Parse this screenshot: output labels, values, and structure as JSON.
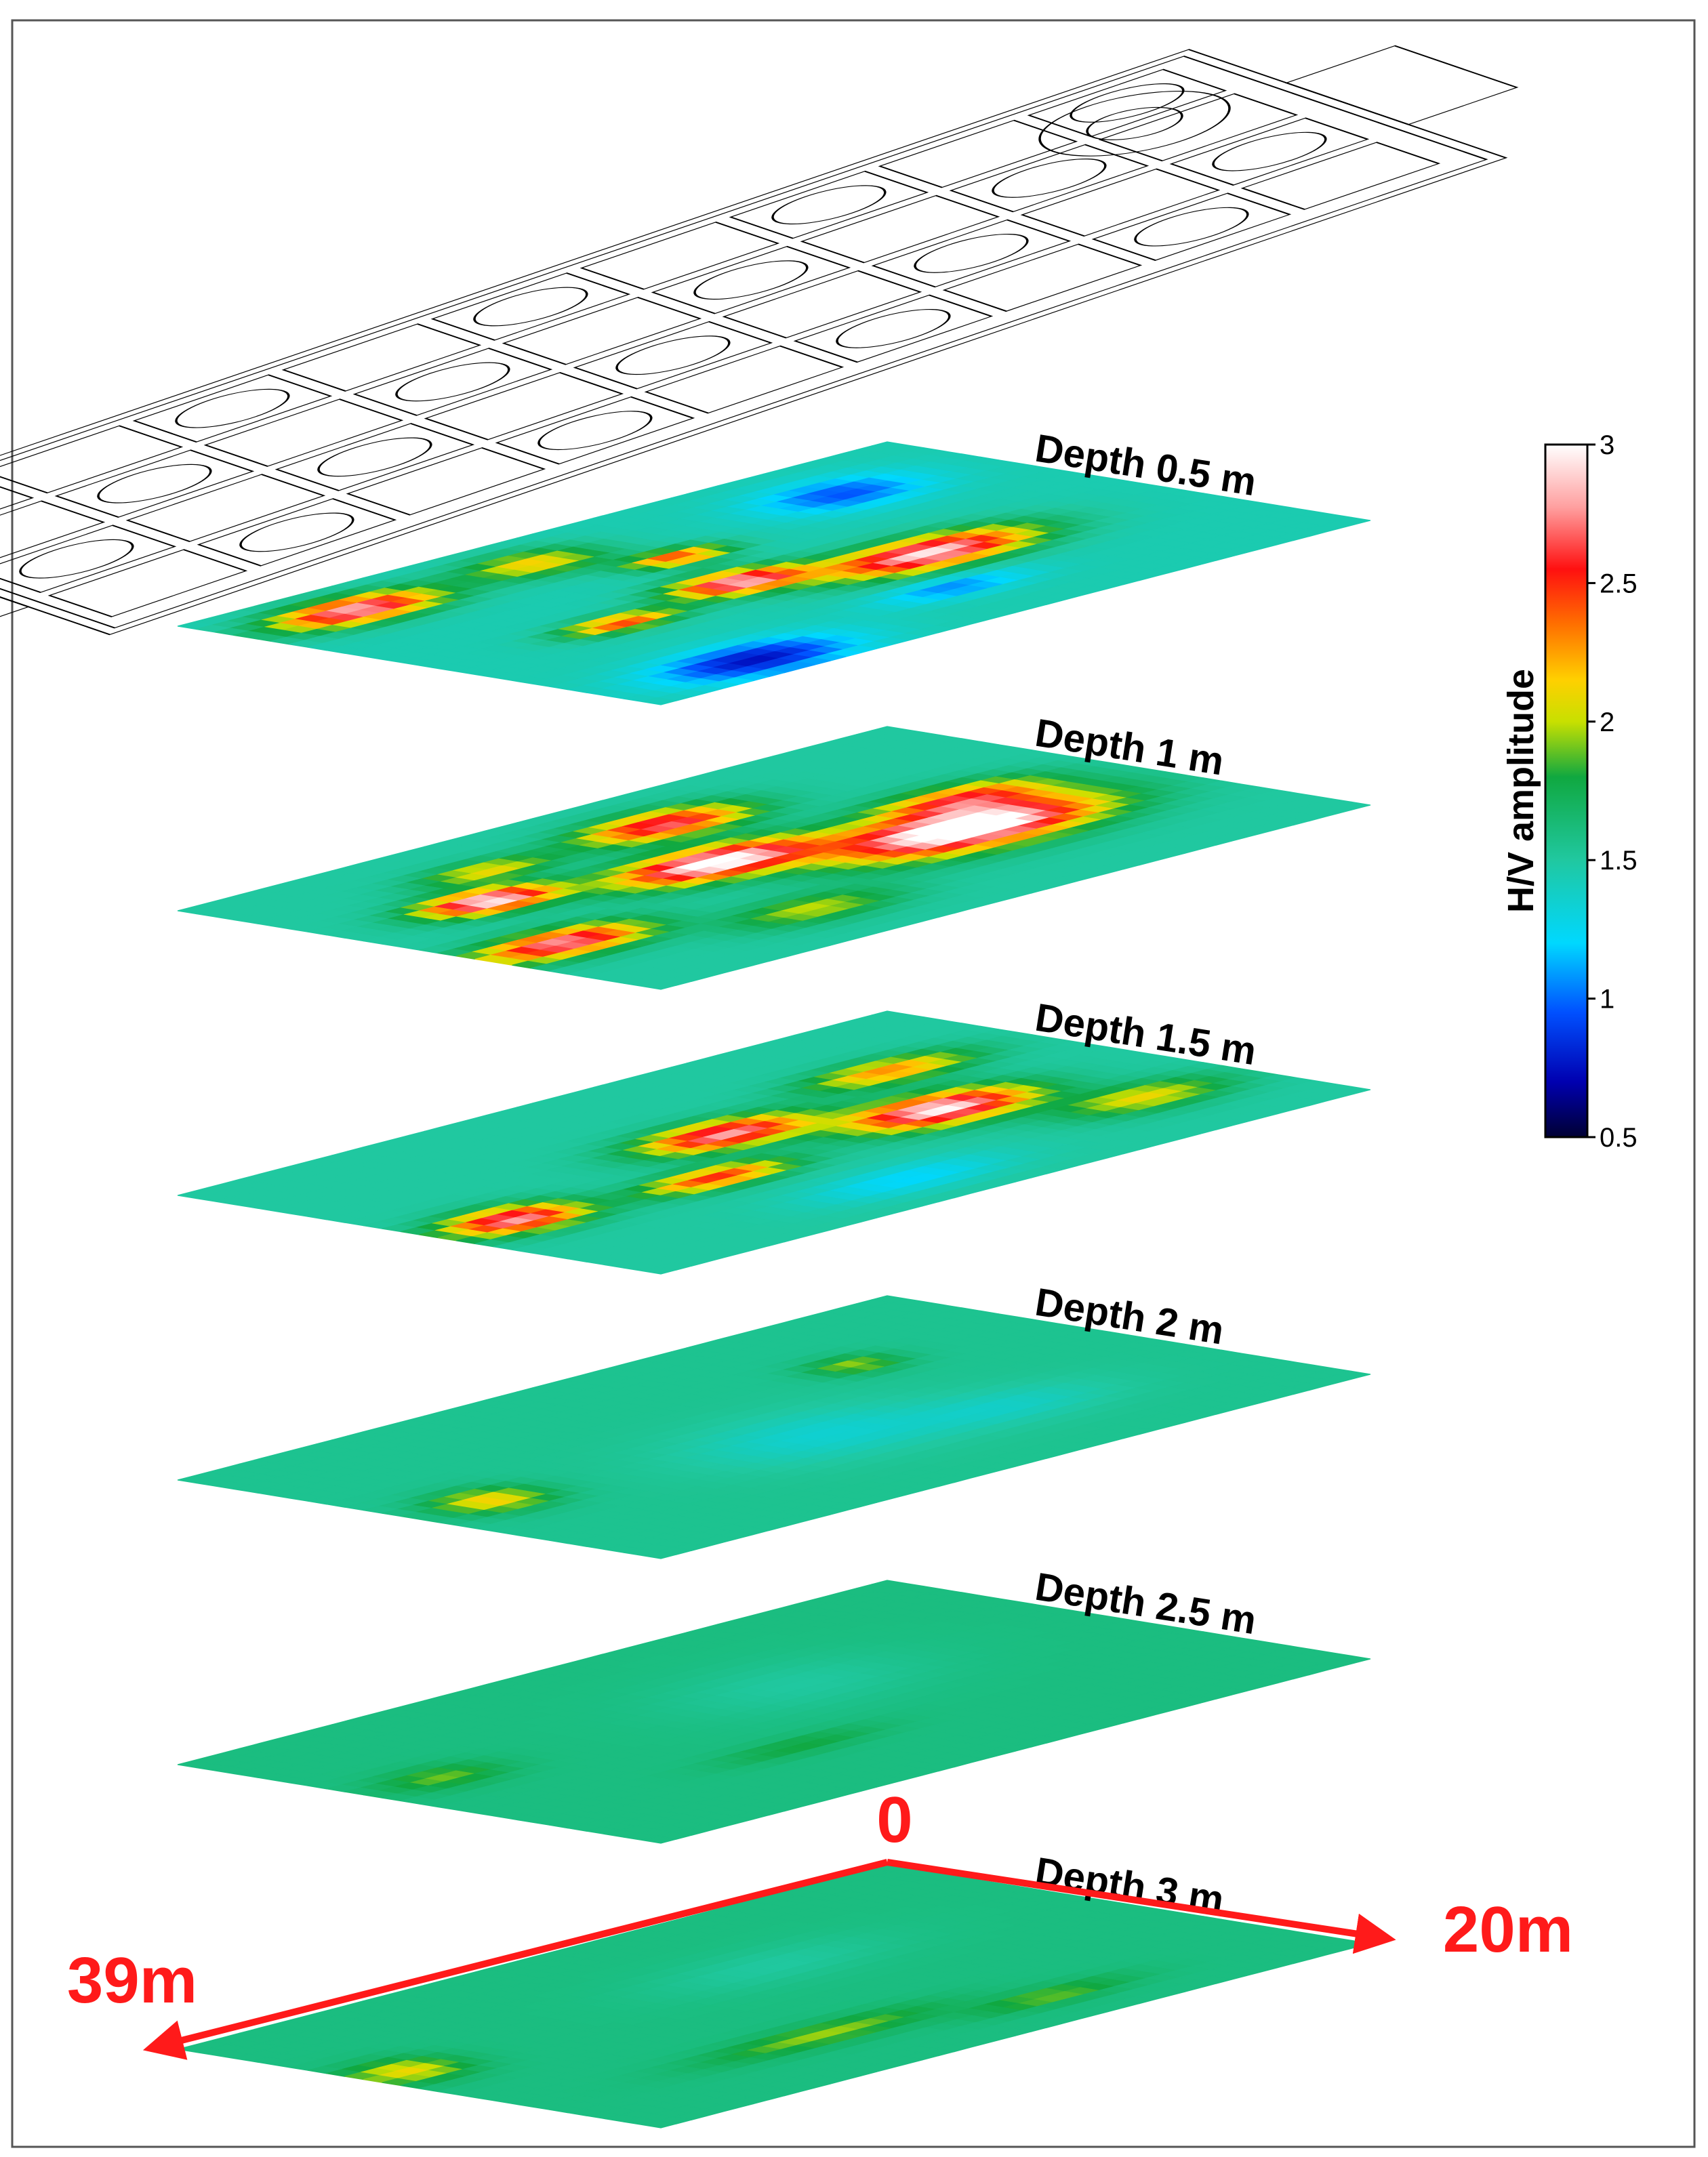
{
  "chart_data": {
    "type": "heatmap",
    "layers": [
      {
        "label": "Depth 0.5 m",
        "depth": 0.5,
        "base": 1.45,
        "blobs": [
          [
            0.35,
            0.6,
            0.13,
            0.09,
            1.5
          ],
          [
            0.55,
            0.5,
            0.08,
            0.07,
            1.4
          ],
          [
            0.5,
            0.3,
            0.06,
            0.05,
            1.0
          ],
          [
            0.85,
            0.15,
            0.1,
            0.08,
            1.4
          ],
          [
            0.75,
            0.55,
            0.07,
            0.05,
            1.0
          ],
          [
            0.8,
            0.9,
            0.12,
            0.1,
            -0.7
          ],
          [
            0.2,
            0.2,
            0.1,
            0.1,
            -0.5
          ],
          [
            0.45,
            0.8,
            0.09,
            0.06,
            -0.4
          ],
          [
            0.6,
            0.15,
            0.08,
            0.08,
            0.7
          ]
        ]
      },
      {
        "label": "Depth 1 m",
        "depth": 1,
        "base": 1.5,
        "blobs": [
          [
            0.3,
            0.6,
            0.16,
            0.12,
            1.8
          ],
          [
            0.55,
            0.45,
            0.12,
            0.09,
            1.6
          ],
          [
            0.8,
            0.35,
            0.08,
            0.07,
            1.5
          ],
          [
            0.45,
            0.2,
            0.1,
            0.08,
            1.2
          ],
          [
            0.2,
            0.45,
            0.1,
            0.08,
            0.9
          ],
          [
            0.9,
            0.65,
            0.1,
            0.08,
            1.3
          ],
          [
            0.65,
            0.8,
            0.1,
            0.08,
            0.5
          ],
          [
            0.7,
            0.2,
            0.08,
            0.06,
            0.6
          ]
        ]
      },
      {
        "label": "Depth 1.5 m",
        "depth": 1.5,
        "base": 1.5,
        "blobs": [
          [
            0.3,
            0.55,
            0.11,
            0.09,
            1.5
          ],
          [
            0.5,
            0.4,
            0.1,
            0.08,
            1.3
          ],
          [
            0.9,
            0.55,
            0.08,
            0.08,
            1.3
          ],
          [
            0.65,
            0.6,
            0.09,
            0.06,
            1.0
          ],
          [
            0.2,
            0.3,
            0.1,
            0.07,
            0.8
          ],
          [
            0.55,
            0.85,
            0.12,
            0.08,
            -0.3
          ],
          [
            0.15,
            0.75,
            0.1,
            0.08,
            0.6
          ]
        ]
      },
      {
        "label": "Depth 2 m",
        "depth": 2,
        "base": 1.55,
        "blobs": [
          [
            0.9,
            0.5,
            0.06,
            0.08,
            0.6
          ],
          [
            0.25,
            0.3,
            0.05,
            0.06,
            0.4
          ],
          [
            0.5,
            0.6,
            0.15,
            0.15,
            -0.2
          ],
          [
            0.3,
            0.7,
            0.12,
            0.1,
            -0.15
          ]
        ]
      },
      {
        "label": "Depth 2.5 m",
        "depth": 2.5,
        "base": 1.6,
        "blobs": [
          [
            0.9,
            0.4,
            0.07,
            0.07,
            0.3
          ],
          [
            0.6,
            0.7,
            0.1,
            0.05,
            0.2
          ],
          [
            0.4,
            0.4,
            0.15,
            0.15,
            -0.1
          ]
        ]
      },
      {
        "label": "Depth 3 m",
        "depth": 3,
        "base": 1.6,
        "blobs": [
          [
            0.95,
            0.4,
            0.06,
            0.08,
            0.5
          ],
          [
            0.6,
            0.75,
            0.15,
            0.06,
            0.35
          ],
          [
            0.35,
            0.85,
            0.1,
            0.05,
            0.3
          ],
          [
            0.4,
            0.35,
            0.15,
            0.1,
            -0.1
          ]
        ]
      }
    ],
    "colorbar": {
      "title": "H/V amplitude",
      "min": 0.5,
      "max": 3,
      "ticks": [
        "0.5",
        "1",
        "1.5",
        "2",
        "2.5",
        "3"
      ]
    },
    "axes": {
      "origin_label": "0",
      "length_label": "39m",
      "width_label": "20m",
      "color": "#ff1a1a"
    }
  }
}
